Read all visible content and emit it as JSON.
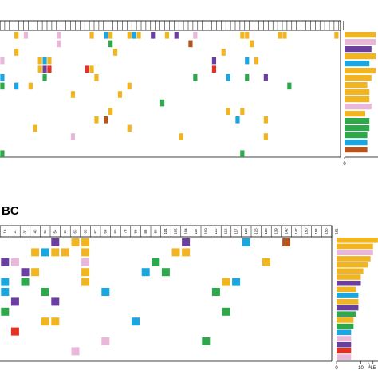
{
  "panel_label": "BC",
  "chart_data": [
    {
      "type": "heatmap",
      "panel": "top",
      "column_labels": [
        "",
        "",
        "",
        "",
        "",
        "",
        "",
        "",
        "",
        "",
        "",
        "",
        "",
        "",
        "",
        "",
        "",
        "",
        "",
        "",
        "",
        "",
        "",
        "",
        "",
        "",
        "",
        "",
        "",
        "",
        "",
        "",
        "",
        "",
        "",
        "",
        "",
        "",
        "",
        "",
        "",
        "",
        "",
        "",
        "",
        "",
        "",
        "",
        "",
        "",
        "",
        "",
        "",
        "",
        "",
        "",
        "",
        "",
        "",
        "",
        "",
        "",
        "",
        "",
        "",
        "",
        "",
        "",
        "",
        "",
        "",
        "",
        "",
        ""
      ],
      "cells": [
        {
          "col": 3,
          "row": 0,
          "color": "#f2b522"
        },
        {
          "col": 5,
          "row": 0,
          "color": "#e8b7d9"
        },
        {
          "col": 12,
          "row": 0,
          "color": "#e8b7d9"
        },
        {
          "col": 19,
          "row": 0,
          "color": "#f2b522"
        },
        {
          "col": 22,
          "row": 0,
          "color": "#1ba6e0"
        },
        {
          "col": 23,
          "row": 0,
          "color": "#f2b522"
        },
        {
          "col": 27,
          "row": 0,
          "color": "#f2b522"
        },
        {
          "col": 28,
          "row": 0,
          "color": "#1ba6e0"
        },
        {
          "col": 29,
          "row": 0,
          "color": "#f2b522"
        },
        {
          "col": 32,
          "row": 0,
          "color": "#6a3fa0"
        },
        {
          "col": 35,
          "row": 0,
          "color": "#f2b522"
        },
        {
          "col": 37,
          "row": 0,
          "color": "#6a3fa0"
        },
        {
          "col": 41,
          "row": 0,
          "color": "#e8b7d9"
        },
        {
          "col": 51,
          "row": 0,
          "color": "#f2b522"
        },
        {
          "col": 52,
          "row": 0,
          "color": "#f2b522"
        },
        {
          "col": 59,
          "row": 0,
          "color": "#f2b522"
        },
        {
          "col": 60,
          "row": 0,
          "color": "#f2b522"
        },
        {
          "col": 71,
          "row": 0,
          "color": "#f2b522"
        },
        {
          "col": 12,
          "row": 1,
          "color": "#e8b7d9"
        },
        {
          "col": 23,
          "row": 1,
          "color": "#2ea84a"
        },
        {
          "col": 40,
          "row": 1,
          "color": "#b5541d"
        },
        {
          "col": 53,
          "row": 1,
          "color": "#f2b522"
        },
        {
          "col": 3,
          "row": 2,
          "color": "#f2b522"
        },
        {
          "col": 24,
          "row": 2,
          "color": "#f2b522"
        },
        {
          "col": 47,
          "row": 2,
          "color": "#f2b522"
        },
        {
          "col": 0,
          "row": 3,
          "color": "#e8b7d9"
        },
        {
          "col": 8,
          "row": 3,
          "color": "#f2b522"
        },
        {
          "col": 9,
          "row": 3,
          "color": "#1ba6e0"
        },
        {
          "col": 10,
          "row": 3,
          "color": "#f2b522"
        },
        {
          "col": 45,
          "row": 3,
          "color": "#6a3fa0"
        },
        {
          "col": 52,
          "row": 3,
          "color": "#1ba6e0"
        },
        {
          "col": 54,
          "row": 3,
          "color": "#f2b522"
        },
        {
          "col": 8,
          "row": 4,
          "color": "#f2b522"
        },
        {
          "col": 9,
          "row": 4,
          "color": "#6a3fa0"
        },
        {
          "col": 10,
          "row": 4,
          "color": "#e33224"
        },
        {
          "col": 18,
          "row": 4,
          "color": "#e33224"
        },
        {
          "col": 19,
          "row": 4,
          "color": "#f2b522"
        },
        {
          "col": 45,
          "row": 4,
          "color": "#e33224"
        },
        {
          "col": 0,
          "row": 5,
          "color": "#1ba6e0"
        },
        {
          "col": 9,
          "row": 5,
          "color": "#2ea84a"
        },
        {
          "col": 20,
          "row": 5,
          "color": "#f2b522"
        },
        {
          "col": 41,
          "row": 5,
          "color": "#2ea84a"
        },
        {
          "col": 48,
          "row": 5,
          "color": "#1ba6e0"
        },
        {
          "col": 52,
          "row": 5,
          "color": "#2ea84a"
        },
        {
          "col": 56,
          "row": 5,
          "color": "#6a3fa0"
        },
        {
          "col": 0,
          "row": 6,
          "color": "#2ea84a"
        },
        {
          "col": 3,
          "row": 6,
          "color": "#1ba6e0"
        },
        {
          "col": 6,
          "row": 6,
          "color": "#f2b522"
        },
        {
          "col": 27,
          "row": 6,
          "color": "#f2b522"
        },
        {
          "col": 61,
          "row": 6,
          "color": "#2ea84a"
        },
        {
          "col": 15,
          "row": 7,
          "color": "#f2b522"
        },
        {
          "col": 25,
          "row": 7,
          "color": "#f2b522"
        },
        {
          "col": 34,
          "row": 8,
          "color": "#2ea84a"
        },
        {
          "col": 23,
          "row": 9,
          "color": "#f2b522"
        },
        {
          "col": 48,
          "row": 9,
          "color": "#f2b522"
        },
        {
          "col": 51,
          "row": 9,
          "color": "#f2b522"
        },
        {
          "col": 20,
          "row": 10,
          "color": "#f2b522"
        },
        {
          "col": 22,
          "row": 10,
          "color": "#b5541d"
        },
        {
          "col": 50,
          "row": 10,
          "color": "#1ba6e0"
        },
        {
          "col": 56,
          "row": 10,
          "color": "#f2b522"
        },
        {
          "col": 7,
          "row": 11,
          "color": "#f2b522"
        },
        {
          "col": 27,
          "row": 11,
          "color": "#f2b522"
        },
        {
          "col": 15,
          "row": 12,
          "color": "#e8b7d9"
        },
        {
          "col": 38,
          "row": 12,
          "color": "#f2b522"
        },
        {
          "col": 56,
          "row": 12,
          "color": "#f2b522"
        },
        {
          "col": 0,
          "row": 14,
          "color": "#2ea84a"
        },
        {
          "col": 51,
          "row": 14,
          "color": "#2ea84a"
        }
      ],
      "bar_values": [
        15,
        15,
        13,
        15,
        12,
        15,
        13,
        11,
        12,
        12,
        13,
        10,
        12,
        12,
        11,
        11,
        11
      ],
      "bar_colors": [
        "#f2b522",
        "#e8b7d9",
        "#6a3fa0",
        "#f2b522",
        "#1ba6e0",
        "#f2b522",
        "#f2b522",
        "#f2b522",
        "#f2b522",
        "#f2b522",
        "#e8b7d9",
        "#f2b522",
        "#2ea84a",
        "#2ea84a",
        "#2ea84a",
        "#1ba6e0",
        "#b5541d"
      ],
      "x_ticks": [
        "0"
      ]
    },
    {
      "type": "heatmap",
      "panel": "bottom",
      "column_labels": [
        "16",
        "21",
        "31",
        "43",
        "51",
        "54",
        "61",
        "63",
        "65",
        "67",
        "68",
        "69",
        "70",
        "80",
        "88",
        "89",
        "101",
        "102",
        "104",
        "107",
        "109",
        "110",
        "112",
        "117",
        "120",
        "126",
        "128",
        "139",
        "142",
        "147",
        "150",
        "154",
        "156",
        "151"
      ],
      "cells": [
        {
          "col": 5,
          "row": 0,
          "color": "#6a3fa0"
        },
        {
          "col": 7,
          "row": 0,
          "color": "#f2b522"
        },
        {
          "col": 8,
          "row": 0,
          "color": "#f2b522"
        },
        {
          "col": 18,
          "row": 0,
          "color": "#6a3fa0"
        },
        {
          "col": 24,
          "row": 0,
          "color": "#1ba6e0"
        },
        {
          "col": 28,
          "row": 0,
          "color": "#b5541d"
        },
        {
          "col": 3,
          "row": 1,
          "color": "#f2b522"
        },
        {
          "col": 4,
          "row": 1,
          "color": "#1ba6e0"
        },
        {
          "col": 5,
          "row": 1,
          "color": "#f2b522"
        },
        {
          "col": 6,
          "row": 1,
          "color": "#f2b522"
        },
        {
          "col": 8,
          "row": 1,
          "color": "#f2b522"
        },
        {
          "col": 17,
          "row": 1,
          "color": "#f2b522"
        },
        {
          "col": 18,
          "row": 1,
          "color": "#f2b522"
        },
        {
          "col": 0,
          "row": 2,
          "color": "#6a3fa0"
        },
        {
          "col": 1,
          "row": 2,
          "color": "#e8b7d9"
        },
        {
          "col": 8,
          "row": 2,
          "color": "#e8b7d9"
        },
        {
          "col": 15,
          "row": 2,
          "color": "#2ea84a"
        },
        {
          "col": 26,
          "row": 2,
          "color": "#f2b522"
        },
        {
          "col": 2,
          "row": 3,
          "color": "#6a3fa0"
        },
        {
          "col": 3,
          "row": 3,
          "color": "#f2b522"
        },
        {
          "col": 8,
          "row": 3,
          "color": "#f2b522"
        },
        {
          "col": 14,
          "row": 3,
          "color": "#1ba6e0"
        },
        {
          "col": 16,
          "row": 3,
          "color": "#2ea84a"
        },
        {
          "col": 0,
          "row": 4,
          "color": "#1ba6e0"
        },
        {
          "col": 2,
          "row": 4,
          "color": "#2ea84a"
        },
        {
          "col": 8,
          "row": 4,
          "color": "#f2b522"
        },
        {
          "col": 22,
          "row": 4,
          "color": "#f2b522"
        },
        {
          "col": 23,
          "row": 4,
          "color": "#1ba6e0"
        },
        {
          "col": 0,
          "row": 5,
          "color": "#1ba6e0"
        },
        {
          "col": 4,
          "row": 5,
          "color": "#2ea84a"
        },
        {
          "col": 10,
          "row": 5,
          "color": "#1ba6e0"
        },
        {
          "col": 21,
          "row": 5,
          "color": "#2ea84a"
        },
        {
          "col": 1,
          "row": 6,
          "color": "#6a3fa0"
        },
        {
          "col": 5,
          "row": 6,
          "color": "#6a3fa0"
        },
        {
          "col": 0,
          "row": 7,
          "color": "#2ea84a"
        },
        {
          "col": 22,
          "row": 7,
          "color": "#2ea84a"
        },
        {
          "col": 4,
          "row": 8,
          "color": "#f2b522"
        },
        {
          "col": 5,
          "row": 8,
          "color": "#f2b522"
        },
        {
          "col": 13,
          "row": 8,
          "color": "#1ba6e0"
        },
        {
          "col": 1,
          "row": 9,
          "color": "#e33224"
        },
        {
          "col": 10,
          "row": 10,
          "color": "#e8b7d9"
        },
        {
          "col": 20,
          "row": 10,
          "color": "#2ea84a"
        },
        {
          "col": 7,
          "row": 11,
          "color": "#e8b7d9"
        }
      ],
      "bar_values": [
        17,
        15,
        15,
        14,
        13,
        11,
        10,
        10,
        8,
        9,
        9,
        9,
        8,
        7,
        7,
        6,
        6,
        6,
        6,
        6
      ],
      "bar_colors": [
        "#f2b522",
        "#f2b522",
        "#e8b7d9",
        "#f2b522",
        "#f2b522",
        "#f2b522",
        "#f2b522",
        "#6a3fa0",
        "#f2b522",
        "#1ba6e0",
        "#f2b522",
        "#6a3fa0",
        "#2ea84a",
        "#f2b522",
        "#2ea84a",
        "#1ba6e0",
        "#e8b7d9",
        "#6a3fa0",
        "#e33224",
        "#e8b7d9"
      ],
      "x_ticks": [
        "0",
        "10",
        "15"
      ],
      "x_label": "Fr"
    }
  ]
}
